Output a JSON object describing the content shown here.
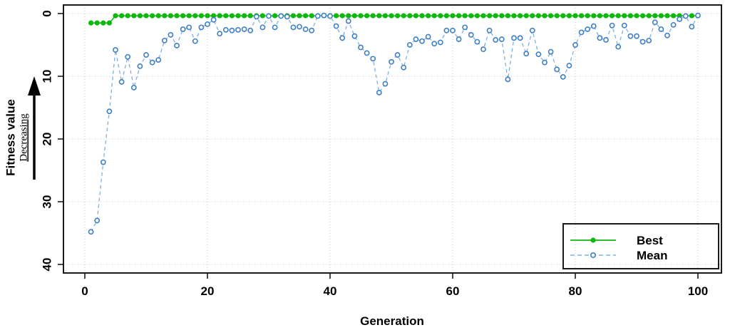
{
  "chart_data": {
    "type": "scatter",
    "title": "",
    "xlabel": "Generation",
    "ylabel": "Fitness value",
    "y_annotation": "Decreasing",
    "x_range": [
      1,
      100
    ],
    "xticks": [
      0,
      20,
      40,
      60,
      80,
      100
    ],
    "yticks": [
      0,
      10,
      20,
      30,
      40
    ],
    "xlim": [
      -3.5,
      104
    ],
    "ylim": [
      0,
      40
    ],
    "y_axis_reversed": true,
    "grid": true,
    "legend": {
      "position": "bottom-right",
      "entries": [
        "Best",
        "Mean"
      ]
    },
    "series": [
      {
        "name": "Best",
        "marker": "filled-circle",
        "line": "solid",
        "color": "#0cb80c",
        "values": [
          1.5,
          1.5,
          1.5,
          1.5,
          0.35,
          0.35,
          0.35,
          0.35,
          0.35,
          0.35,
          0.35,
          0.35,
          0.35,
          0.35,
          0.35,
          0.35,
          0.35,
          0.35,
          0.35,
          0.35,
          0.35,
          0.35,
          0.35,
          0.35,
          0.35,
          0.35,
          0.35,
          0.35,
          0.35,
          0.35,
          0.35,
          0.35,
          0.35,
          0.35,
          0.35,
          0.35,
          0.35,
          0.35,
          0.35,
          0.35,
          0.35,
          0.35,
          0.35,
          0.35,
          0.35,
          0.35,
          0.35,
          0.35,
          0.35,
          0.35,
          0.35,
          0.35,
          0.35,
          0.35,
          0.35,
          0.35,
          0.35,
          0.35,
          0.35,
          0.35,
          0.35,
          0.35,
          0.35,
          0.35,
          0.35,
          0.35,
          0.35,
          0.35,
          0.35,
          0.35,
          0.35,
          0.35,
          0.35,
          0.35,
          0.35,
          0.35,
          0.35,
          0.35,
          0.35,
          0.35,
          0.35,
          0.35,
          0.35,
          0.35,
          0.35,
          0.35,
          0.35,
          0.35,
          0.35,
          0.35,
          0.35,
          0.35,
          0.35,
          0.35,
          0.35,
          0.35,
          0.35,
          0.35,
          0.35,
          0.35
        ]
      },
      {
        "name": "Mean",
        "marker": "open-circle",
        "line": "dashed",
        "color": "#3e7fc6",
        "line_color": "#7fb0e3",
        "values": [
          34.8,
          33.0,
          23.7,
          15.6,
          5.8,
          10.9,
          6.9,
          11.8,
          8.4,
          6.6,
          7.8,
          7.4,
          4.3,
          3.4,
          5.1,
          2.5,
          2.2,
          4.4,
          2.2,
          1.7,
          1.0,
          3.2,
          2.6,
          2.7,
          2.6,
          2.5,
          2.7,
          0.5,
          2.2,
          0.4,
          2.2,
          0.4,
          0.5,
          2.2,
          2.1,
          2.5,
          2.7,
          0.4,
          0.3,
          0.4,
          2.0,
          3.9,
          1.2,
          3.6,
          5.4,
          6.3,
          7.2,
          12.6,
          11.2,
          7.7,
          6.6,
          8.6,
          5.0,
          4.1,
          4.4,
          3.7,
          4.8,
          4.6,
          2.7,
          2.7,
          4.1,
          2.2,
          3.4,
          4.5,
          5.7,
          2.7,
          4.2,
          4.1,
          10.5,
          3.9,
          3.9,
          6.4,
          2.7,
          6.5,
          7.8,
          6.1,
          8.9,
          10.1,
          8.3,
          5.0,
          3.0,
          2.5,
          2.0,
          3.9,
          4.2,
          1.9,
          5.3,
          1.9,
          3.6,
          3.6,
          4.5,
          4.3,
          1.4,
          2.5,
          3.5,
          1.8,
          0.9,
          0.4,
          2.1,
          0.3
        ]
      }
    ],
    "colors": {
      "grid": "#c4c4c4",
      "axis": "#1a1a1a",
      "arrow": "#000000",
      "background": "#ffffff"
    }
  }
}
